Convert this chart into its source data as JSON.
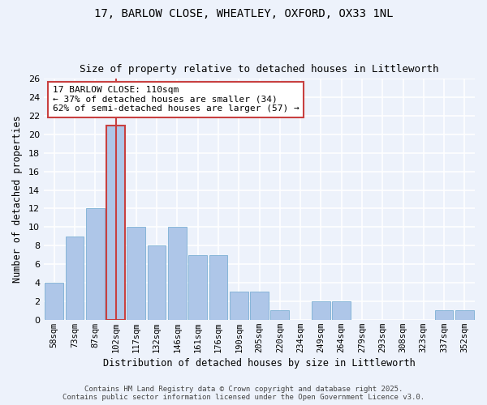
{
  "title_line1": "17, BARLOW CLOSE, WHEATLEY, OXFORD, OX33 1NL",
  "title_line2": "Size of property relative to detached houses in Littleworth",
  "xlabel": "Distribution of detached houses by size in Littleworth",
  "ylabel": "Number of detached properties",
  "categories": [
    "58sqm",
    "73sqm",
    "87sqm",
    "102sqm",
    "117sqm",
    "132sqm",
    "146sqm",
    "161sqm",
    "176sqm",
    "190sqm",
    "205sqm",
    "220sqm",
    "234sqm",
    "249sqm",
    "264sqm",
    "279sqm",
    "293sqm",
    "308sqm",
    "323sqm",
    "337sqm",
    "352sqm"
  ],
  "values": [
    4,
    9,
    12,
    21,
    10,
    8,
    10,
    7,
    7,
    3,
    3,
    1,
    0,
    2,
    2,
    0,
    0,
    0,
    0,
    1,
    1
  ],
  "bar_color": "#aec6e8",
  "bar_edge_color": "#7bafd4",
  "highlight_bar_index": 3,
  "highlight_bar_color": "#aec6e8",
  "highlight_bar_edge_color": "#c84040",
  "vline_color": "#c84040",
  "ylim": [
    0,
    26
  ],
  "yticks": [
    0,
    2,
    4,
    6,
    8,
    10,
    12,
    14,
    16,
    18,
    20,
    22,
    24,
    26
  ],
  "annotation_text": "17 BARLOW CLOSE: 110sqm\n← 37% of detached houses are smaller (34)\n62% of semi-detached houses are larger (57) →",
  "annotation_box_color": "#ffffff",
  "annotation_box_edge_color": "#c84040",
  "background_color": "#edf2fb",
  "grid_color": "#ffffff",
  "footer_line1": "Contains HM Land Registry data © Crown copyright and database right 2025.",
  "footer_line2": "Contains public sector information licensed under the Open Government Licence v3.0."
}
